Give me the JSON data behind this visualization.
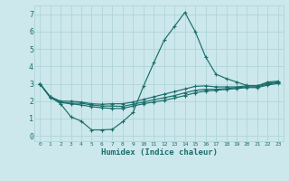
{
  "title": "",
  "xlabel": "Humidex (Indice chaleur)",
  "bg_color": "#cce8ec",
  "grid_color": "#b0d4d8",
  "line_color": "#1a6e6a",
  "xlim": [
    -0.5,
    23.5
  ],
  "ylim": [
    -0.3,
    7.5
  ],
  "xticks": [
    0,
    1,
    2,
    3,
    4,
    5,
    6,
    7,
    8,
    9,
    10,
    11,
    12,
    13,
    14,
    15,
    16,
    17,
    18,
    19,
    20,
    21,
    22,
    23
  ],
  "yticks": [
    0,
    1,
    2,
    3,
    4,
    5,
    6,
    7
  ],
  "lines": [
    {
      "x": [
        0,
        1,
        2,
        3,
        4,
        5,
        6,
        7,
        8,
        9,
        10,
        11,
        12,
        13,
        14,
        15,
        16,
        17,
        18,
        19,
        20,
        21,
        22,
        23
      ],
      "y": [
        3.0,
        2.25,
        1.85,
        1.1,
        0.85,
        0.35,
        0.35,
        0.38,
        0.82,
        1.35,
        2.85,
        4.2,
        5.5,
        6.3,
        7.1,
        6.0,
        4.55,
        3.55,
        3.3,
        3.1,
        2.9,
        2.88,
        3.1,
        3.15
      ]
    },
    {
      "x": [
        0,
        1,
        2,
        3,
        4,
        5,
        6,
        7,
        8,
        9,
        10,
        11,
        12,
        13,
        14,
        15,
        16,
        17,
        18,
        19,
        20,
        21,
        22,
        23
      ],
      "y": [
        3.0,
        2.25,
        2.0,
        2.0,
        1.95,
        1.85,
        1.82,
        1.85,
        1.85,
        1.95,
        2.1,
        2.25,
        2.4,
        2.55,
        2.7,
        2.85,
        2.88,
        2.82,
        2.82,
        2.82,
        2.88,
        2.88,
        3.02,
        3.1
      ]
    },
    {
      "x": [
        0,
        1,
        2,
        3,
        4,
        5,
        6,
        7,
        8,
        9,
        10,
        11,
        12,
        13,
        14,
        15,
        16,
        17,
        18,
        19,
        20,
        21,
        22,
        23
      ],
      "y": [
        3.0,
        2.25,
        1.95,
        1.88,
        1.88,
        1.78,
        1.72,
        1.72,
        1.7,
        1.82,
        1.95,
        2.08,
        2.2,
        2.32,
        2.48,
        2.62,
        2.68,
        2.68,
        2.72,
        2.78,
        2.82,
        2.82,
        2.98,
        3.08
      ]
    },
    {
      "x": [
        0,
        1,
        2,
        3,
        4,
        5,
        6,
        7,
        8,
        9,
        10,
        11,
        12,
        13,
        14,
        15,
        16,
        17,
        18,
        19,
        20,
        21,
        22,
        23
      ],
      "y": [
        3.0,
        2.2,
        1.92,
        1.85,
        1.78,
        1.68,
        1.62,
        1.58,
        1.58,
        1.72,
        1.85,
        1.95,
        2.05,
        2.18,
        2.32,
        2.48,
        2.58,
        2.62,
        2.68,
        2.72,
        2.78,
        2.78,
        2.92,
        3.02
      ]
    }
  ]
}
